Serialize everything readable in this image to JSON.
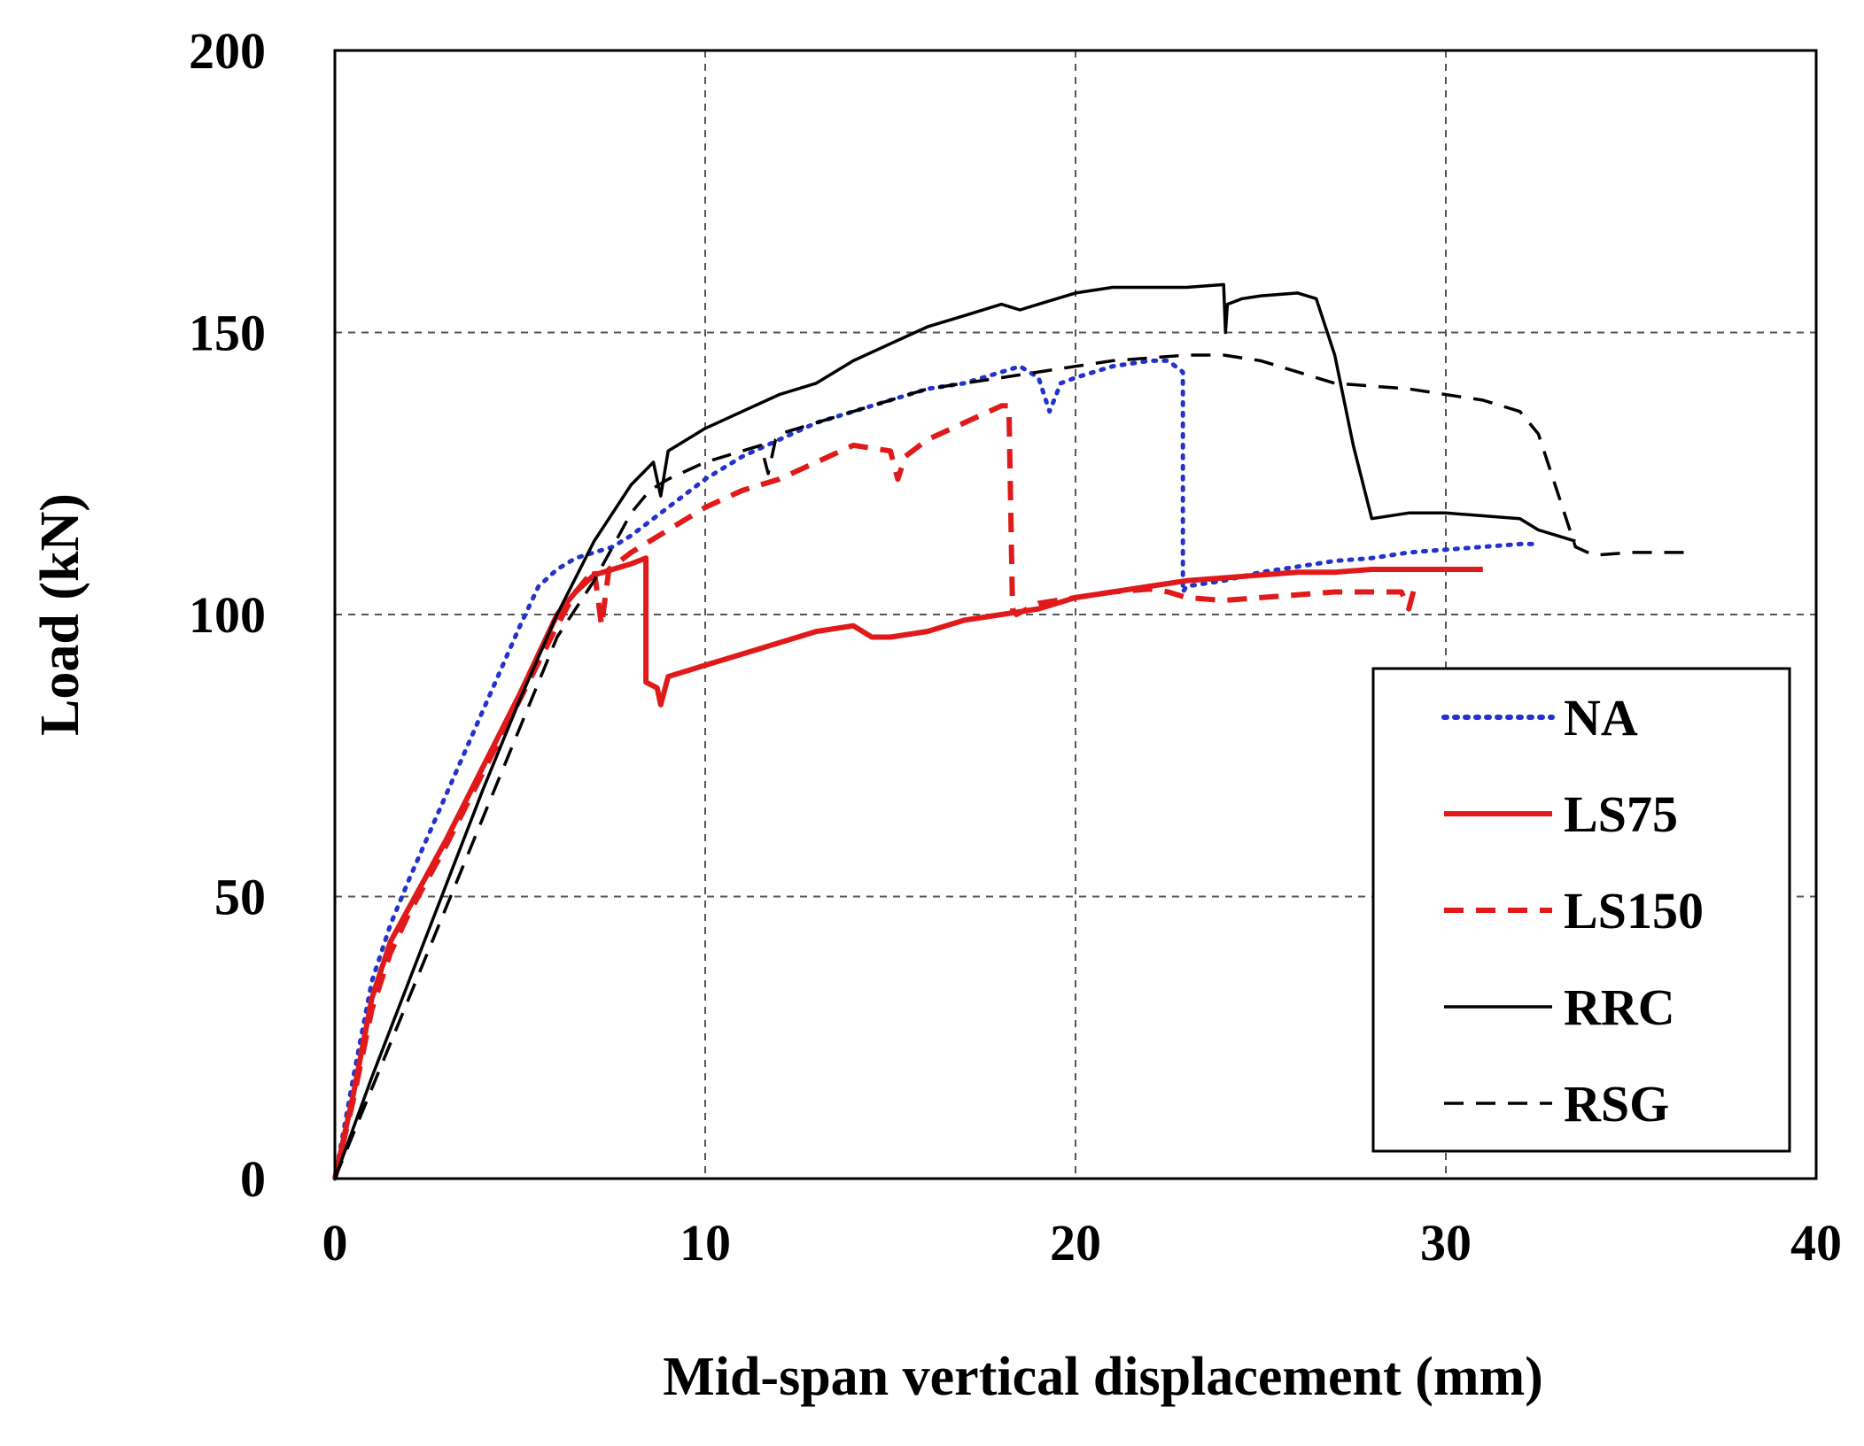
{
  "chart_data": {
    "type": "line",
    "title": "",
    "xlabel": "Mid-span vertical displacement (mm)",
    "ylabel": "Load (kN)",
    "xlim": [
      0,
      40
    ],
    "ylim": [
      0,
      200
    ],
    "xticks": [
      0,
      10,
      20,
      30,
      40
    ],
    "yticks": [
      0,
      50,
      100,
      150,
      200
    ],
    "xtick_labels": [
      "0",
      "10",
      "20",
      "30",
      "40"
    ],
    "ytick_labels": [
      "0",
      "50",
      "100",
      "150",
      "200"
    ],
    "grid": true,
    "legend_position": "lower-right",
    "series": [
      {
        "name": "NA",
        "color": "#2233cc",
        "style": "dotted",
        "x": [
          0,
          0.5,
          1.0,
          1.5,
          2.0,
          3.0,
          4.0,
          5.0,
          5.5,
          6.0,
          6.5,
          7.0,
          7.5,
          8.0,
          9.0,
          10.0,
          11.0,
          12.0,
          13.0,
          14.0,
          15.0,
          16.0,
          17.0,
          18.0,
          18.5,
          19.0,
          19.3,
          19.6,
          20.0,
          21.0,
          22.0,
          22.5,
          22.9,
          22.9,
          23.0,
          24.0,
          25.0,
          26.0,
          27.0,
          28.0,
          29.0,
          30.0,
          31.0,
          32.0,
          32.5
        ],
        "values": [
          0,
          18,
          35,
          45,
          53,
          68,
          83,
          98,
          105,
          108,
          110,
          111,
          112,
          114,
          119,
          124,
          128,
          131,
          134,
          136,
          138,
          140,
          141,
          143,
          144,
          142,
          136,
          141,
          142,
          144,
          145,
          145,
          143,
          104,
          105,
          106,
          107.5,
          108.5,
          109.5,
          110,
          111,
          111.5,
          112,
          112.5,
          112.5
        ]
      },
      {
        "name": "LS75",
        "color": "#e01a1a",
        "style": "solid",
        "x": [
          0,
          0.5,
          1.0,
          1.5,
          2.0,
          3.0,
          4.0,
          5.0,
          6.0,
          6.5,
          7.0,
          7.5,
          8.0,
          8.4,
          8.4,
          8.7,
          8.8,
          9.0,
          10.0,
          11.0,
          12.0,
          13.0,
          14.0,
          14.5,
          15.0,
          16.0,
          17.0,
          18.0,
          19.0,
          20.0,
          21.0,
          22.0,
          23.0,
          24.0,
          25.0,
          26.0,
          27.0,
          28.0,
          29.0,
          30.0,
          31.0
        ],
        "values": [
          0,
          15,
          32,
          42,
          48,
          60,
          73,
          86,
          100,
          104,
          107,
          108,
          109,
          110,
          88,
          87,
          84,
          89,
          91,
          93,
          95,
          97,
          98,
          96,
          96,
          97,
          99,
          100,
          101,
          103,
          104,
          105,
          106,
          106.5,
          107,
          107.5,
          107.5,
          108,
          108,
          108,
          108
        ]
      },
      {
        "name": "LS150",
        "color": "#e01a1a",
        "style": "dashed",
        "x": [
          0,
          0.5,
          1.0,
          1.5,
          2.0,
          3.0,
          4.0,
          5.0,
          6.0,
          6.5,
          7.0,
          7.2,
          7.4,
          7.6,
          8.0,
          9.0,
          10.0,
          11.0,
          12.0,
          13.0,
          14.0,
          15.0,
          15.2,
          15.4,
          16.0,
          17.0,
          18.0,
          18.2,
          18.3,
          18.4,
          19.0,
          20.0,
          21.0,
          22.0,
          22.5,
          23.0,
          24.0,
          25.0,
          26.0,
          27.0,
          28.0,
          28.8,
          29.0,
          29.2
        ],
        "values": [
          0,
          14,
          30,
          40,
          47,
          59,
          72,
          85,
          98,
          104,
          108,
          98,
          108,
          109,
          111,
          115,
          119,
          122,
          124,
          127,
          130,
          129,
          124,
          128,
          131,
          134,
          137,
          137,
          101,
          100,
          102,
          103,
          104,
          104.5,
          104,
          103,
          102.5,
          103,
          103.5,
          104,
          104,
          104,
          101,
          106
        ]
      },
      {
        "name": "RRC",
        "color": "#000000",
        "style": "solid",
        "x": [
          0,
          1.0,
          2.0,
          3.0,
          4.0,
          5.0,
          6.0,
          7.0,
          8.0,
          8.6,
          8.8,
          9.0,
          10.0,
          11.0,
          12.0,
          13.0,
          14.0,
          15.0,
          16.0,
          17.0,
          18.0,
          18.5,
          19.0,
          20.0,
          21.0,
          22.0,
          23.0,
          24.0,
          24.05,
          24.1,
          24.5,
          25.0,
          26.0,
          26.5,
          27.0,
          27.5,
          28.0,
          29.0,
          30.0,
          31.0,
          32.0,
          32.5,
          33.0,
          33.5
        ],
        "values": [
          0,
          18,
          35,
          52,
          69,
          85,
          100,
          113,
          123,
          127,
          121,
          129,
          133,
          136,
          139,
          141,
          145,
          148,
          151,
          153,
          155,
          154,
          155,
          157,
          158,
          158,
          158,
          158.5,
          150,
          155,
          156,
          156.5,
          157,
          156,
          146,
          130,
          117,
          118,
          118,
          117.5,
          117,
          115,
          114,
          113
        ]
      },
      {
        "name": "RSG",
        "color": "#000000",
        "style": "dashed",
        "x": [
          0,
          1.0,
          2.0,
          3.0,
          4.0,
          5.0,
          6.0,
          7.0,
          7.5,
          8.0,
          8.5,
          9.0,
          10.0,
          11.0,
          11.5,
          11.7,
          11.9,
          12.0,
          13.0,
          14.0,
          15.0,
          16.0,
          17.0,
          18.0,
          19.0,
          20.0,
          21.0,
          22.0,
          23.0,
          24.0,
          25.0,
          26.0,
          27.0,
          28.0,
          29.0,
          30.0,
          31.0,
          32.0,
          32.5,
          33.0,
          33.5,
          34.0,
          35.0,
          36.0,
          36.5
        ],
        "values": [
          0,
          16,
          32,
          48,
          64,
          80,
          96,
          106,
          112,
          118,
          122,
          124,
          127,
          129,
          130,
          125,
          131,
          132,
          134,
          136,
          138,
          140,
          141,
          142,
          143,
          144,
          145,
          145.5,
          146,
          146,
          145,
          143,
          141,
          140.5,
          140,
          139,
          138,
          136,
          132,
          122,
          112,
          110.5,
          111,
          111,
          111
        ]
      }
    ]
  }
}
